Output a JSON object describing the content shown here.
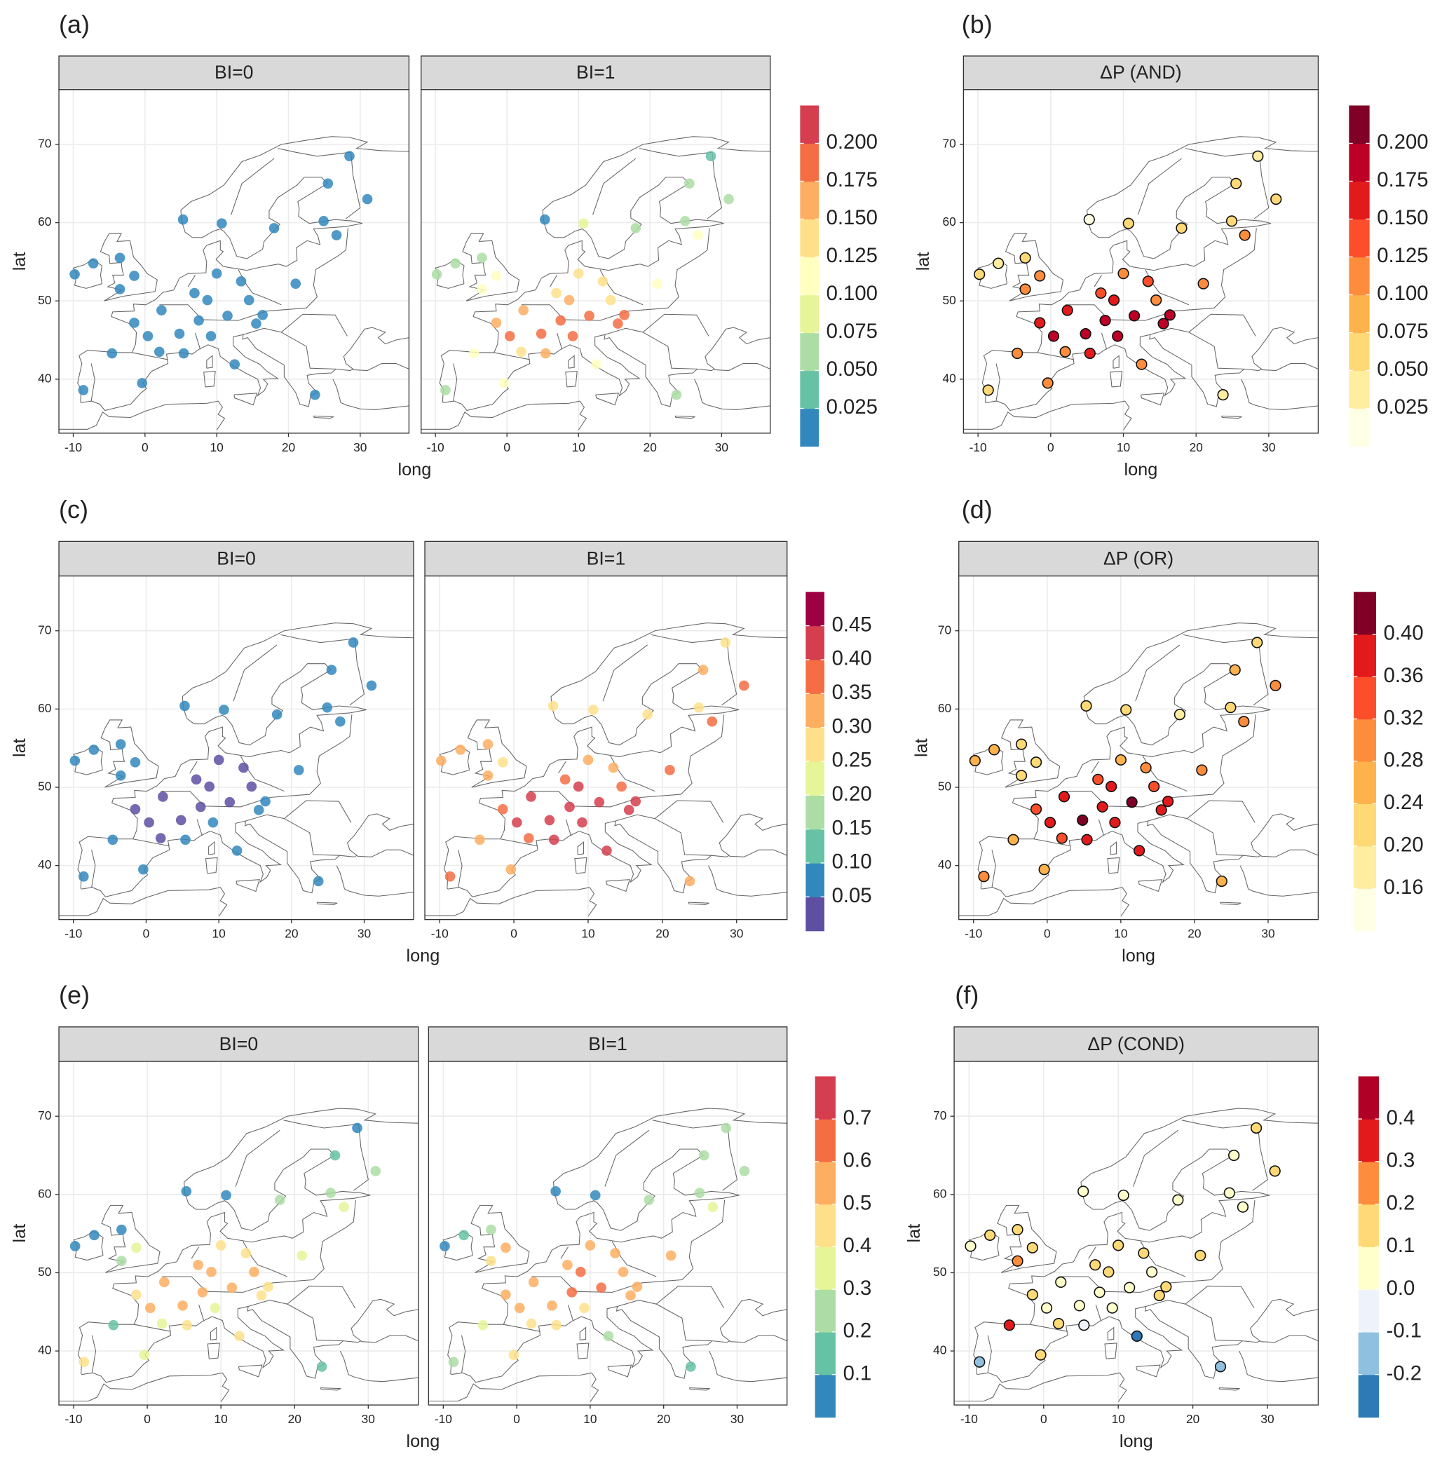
{
  "chart_data": [
    {
      "type": "scatter",
      "panel_label": "(a)",
      "xlabel": "long",
      "ylabel": "lat",
      "xlim": [
        -12,
        36.8
      ],
      "ylim": [
        33.1,
        77
      ],
      "xticks": [
        -10,
        0,
        10,
        20,
        30
      ],
      "yticks": [
        40,
        50,
        60,
        70
      ],
      "grid": true,
      "outlined": false,
      "x": [
        -9.8,
        -7.2,
        -3.5,
        -1.5,
        -3.5,
        -4.6,
        -0.4,
        -8.6,
        2.3,
        -1.5,
        0.4,
        4.8,
        2.0,
        5.4,
        7.5,
        8.7,
        6.9,
        10.0,
        11.5,
        13.4,
        14.5,
        16.4,
        15.5,
        9.2,
        12.5,
        10.7,
        18.0,
        24.9,
        26.7,
        21.0,
        23.7,
        25.5,
        28.5,
        31.0,
        5.3
      ],
      "y": [
        53.4,
        54.8,
        55.5,
        53.2,
        51.5,
        43.3,
        39.5,
        38.6,
        48.8,
        47.2,
        45.5,
        45.8,
        43.5,
        43.3,
        47.5,
        50.1,
        51.0,
        53.5,
        48.1,
        52.5,
        50.1,
        48.2,
        47.1,
        45.5,
        41.9,
        59.9,
        59.3,
        60.2,
        58.4,
        52.2,
        38.0,
        65.0,
        68.5,
        63.0,
        60.4
      ],
      "series": [
        {
          "name": "BI=0",
          "values": [
            0.01,
            0.01,
            0.01,
            0.02,
            0.01,
            0.01,
            0.02,
            0.01,
            0.02,
            0.01,
            0.01,
            0.01,
            0.02,
            0.01,
            0.01,
            0.01,
            0.01,
            0.01,
            0.01,
            0.01,
            0.01,
            0.01,
            0.01,
            0.01,
            0.01,
            0.01,
            0.01,
            0.01,
            0.01,
            0.01,
            0.01,
            0.01,
            0.01,
            0.01,
            0.01
          ]
        },
        {
          "name": "BI=1",
          "values": [
            0.06,
            0.05,
            0.07,
            0.12,
            0.11,
            0.11,
            0.12,
            0.06,
            0.17,
            0.16,
            0.18,
            0.19,
            0.13,
            0.16,
            0.19,
            0.16,
            0.14,
            0.13,
            0.18,
            0.14,
            0.13,
            0.18,
            0.19,
            0.18,
            0.11,
            0.08,
            0.06,
            0.06,
            0.12,
            0.11,
            0.05,
            0.06,
            0.04,
            0.06,
            0.01
          ]
        }
      ],
      "colorbar": {
        "lim": [
          0,
          0.225
        ],
        "colors": [
          "#3288bd",
          "#66c2a5",
          "#abdda4",
          "#e6f598",
          "#ffffbf",
          "#fee08b",
          "#fdae61",
          "#f46d43",
          "#d53e4f"
        ],
        "ticks": [
          0.025,
          {
            "value": 0.05,
            "label": "0.050"
          },
          0.075,
          {
            "value": 0.1,
            "label": "0.100"
          },
          0.125,
          {
            "value": 0.15,
            "label": "0.150"
          },
          0.175,
          {
            "value": 0.2,
            "label": "0.200"
          }
        ]
      }
    },
    {
      "type": "scatter",
      "panel_label": "(b)",
      "xlabel": "long",
      "ylabel": "lat",
      "xlim": [
        -12,
        36.8
      ],
      "ylim": [
        33.1,
        77
      ],
      "xticks": [
        -10,
        0,
        10,
        20,
        30
      ],
      "yticks": [
        40,
        50,
        60,
        70
      ],
      "grid": true,
      "outlined": true,
      "x": [
        -9.8,
        -7.2,
        -3.5,
        -1.5,
        -3.5,
        -4.6,
        -0.4,
        -8.6,
        2.3,
        -1.5,
        0.4,
        4.8,
        2.0,
        5.4,
        7.5,
        8.7,
        6.9,
        10.0,
        11.5,
        13.4,
        14.5,
        16.4,
        15.5,
        9.2,
        12.5,
        10.7,
        18.0,
        24.9,
        26.7,
        21.0,
        23.7,
        25.5,
        28.5,
        31.0,
        5.3
      ],
      "y": [
        53.4,
        54.8,
        55.5,
        53.2,
        51.5,
        43.3,
        39.5,
        38.6,
        48.8,
        47.2,
        45.5,
        45.8,
        43.5,
        43.3,
        47.5,
        50.1,
        51.0,
        53.5,
        48.1,
        52.5,
        50.1,
        48.2,
        47.1,
        45.5,
        41.9,
        59.9,
        59.3,
        60.2,
        58.4,
        52.2,
        38.0,
        65.0,
        68.5,
        63.0,
        60.4
      ],
      "series": [
        {
          "name": "ΔP (AND)",
          "values": [
            0.05,
            0.04,
            0.06,
            0.11,
            0.1,
            0.1,
            0.11,
            0.05,
            0.17,
            0.16,
            0.18,
            0.19,
            0.12,
            0.15,
            0.19,
            0.16,
            0.14,
            0.12,
            0.18,
            0.13,
            0.12,
            0.18,
            0.19,
            0.18,
            0.1,
            0.07,
            0.05,
            0.05,
            0.11,
            0.1,
            0.04,
            0.05,
            0.03,
            0.05,
            0.01
          ]
        }
      ],
      "colorbar": {
        "lim": [
          0,
          0.225
        ],
        "colors": [
          "#ffffe5",
          "#ffeda0",
          "#fed976",
          "#feb24c",
          "#fd8d3c",
          "#fc4e2a",
          "#e31a1c",
          "#bd0026",
          "#800026"
        ],
        "ticks": [
          0.025,
          {
            "value": 0.05,
            "label": "0.050"
          },
          0.075,
          {
            "value": 0.1,
            "label": "0.100"
          },
          0.125,
          {
            "value": 0.15,
            "label": "0.150"
          },
          0.175,
          {
            "value": 0.2,
            "label": "0.200"
          }
        ]
      }
    },
    {
      "type": "scatter",
      "panel_label": "(c)",
      "xlabel": "long",
      "ylabel": "lat",
      "xlim": [
        -12,
        36.8
      ],
      "ylim": [
        33.1,
        77
      ],
      "xticks": [
        -10,
        0,
        10,
        20,
        30
      ],
      "yticks": [
        40,
        50,
        60,
        70
      ],
      "grid": true,
      "outlined": false,
      "x": [
        -9.8,
        -7.2,
        -3.5,
        -1.5,
        -3.5,
        -4.6,
        -0.4,
        -8.6,
        2.3,
        -1.5,
        0.4,
        4.8,
        2.0,
        5.4,
        7.5,
        8.7,
        6.9,
        10.0,
        11.5,
        13.4,
        14.5,
        16.4,
        15.5,
        9.2,
        12.5,
        10.7,
        18.0,
        24.9,
        26.7,
        21.0,
        23.7,
        25.5,
        28.5,
        31.0,
        5.3
      ],
      "y": [
        53.4,
        54.8,
        55.5,
        53.2,
        51.5,
        43.3,
        39.5,
        38.6,
        48.8,
        47.2,
        45.5,
        45.8,
        43.5,
        43.3,
        47.5,
        50.1,
        51.0,
        53.5,
        48.1,
        52.5,
        50.1,
        48.2,
        47.1,
        45.5,
        41.9,
        59.9,
        59.3,
        60.2,
        58.4,
        52.2,
        38.0,
        65.0,
        68.5,
        63.0,
        60.4
      ],
      "series": [
        {
          "name": "BI=0",
          "values": [
            0.07,
            0.07,
            0.07,
            0.07,
            0.07,
            0.07,
            0.07,
            0.07,
            0.03,
            0.03,
            0.03,
            0.03,
            0.03,
            0.07,
            0.03,
            0.03,
            0.03,
            0.03,
            0.03,
            0.03,
            0.03,
            0.07,
            0.07,
            0.06,
            0.07,
            0.07,
            0.07,
            0.07,
            0.07,
            0.07,
            0.07,
            0.07,
            0.07,
            0.07,
            0.07
          ]
        },
        {
          "name": "BI=1",
          "values": [
            0.32,
            0.32,
            0.3,
            0.28,
            0.3,
            0.34,
            0.33,
            0.36,
            0.4,
            0.38,
            0.42,
            0.43,
            0.38,
            0.42,
            0.42,
            0.41,
            0.37,
            0.3,
            0.44,
            0.33,
            0.38,
            0.43,
            0.44,
            0.43,
            0.42,
            0.27,
            0.26,
            0.29,
            0.37,
            0.38,
            0.33,
            0.31,
            0.28,
            0.38,
            0.28
          ]
        }
      ],
      "colorbar": {
        "lim": [
          0,
          0.5
        ],
        "colors": [
          "#5e4fa2",
          "#3288bd",
          "#66c2a5",
          "#abdda4",
          "#e6f598",
          "#fee08b",
          "#fdae61",
          "#f46d43",
          "#d53e4f",
          "#9e0142"
        ],
        "ticks": [
          0.05,
          {
            "value": 0.1,
            "label": "0.10"
          },
          0.15,
          {
            "value": 0.2,
            "label": "0.20"
          },
          0.25,
          {
            "value": 0.3,
            "label": "0.30"
          },
          0.35,
          {
            "value": 0.4,
            "label": "0.40"
          },
          0.45
        ]
      }
    },
    {
      "type": "scatter",
      "panel_label": "(d)",
      "xlabel": "long",
      "ylabel": "lat",
      "xlim": [
        -12,
        36.8
      ],
      "ylim": [
        33.1,
        77
      ],
      "xticks": [
        -10,
        0,
        10,
        20,
        30
      ],
      "yticks": [
        40,
        50,
        60,
        70
      ],
      "grid": true,
      "outlined": true,
      "x": [
        -9.8,
        -7.2,
        -3.5,
        -1.5,
        -3.5,
        -4.6,
        -0.4,
        -8.6,
        2.3,
        -1.5,
        0.4,
        4.8,
        2.0,
        5.4,
        7.5,
        8.7,
        6.9,
        10.0,
        11.5,
        13.4,
        14.5,
        16.4,
        15.5,
        9.2,
        12.5,
        10.7,
        18.0,
        24.9,
        26.7,
        21.0,
        23.7,
        25.5,
        28.5,
        31.0,
        5.3
      ],
      "y": [
        53.4,
        54.8,
        55.5,
        53.2,
        51.5,
        43.3,
        39.5,
        38.6,
        48.8,
        47.2,
        45.5,
        45.8,
        43.5,
        43.3,
        47.5,
        50.1,
        51.0,
        53.5,
        48.1,
        52.5,
        50.1,
        48.2,
        47.1,
        45.5,
        41.9,
        59.9,
        59.3,
        60.2,
        58.4,
        52.2,
        38.0,
        65.0,
        68.5,
        63.0,
        60.4
      ],
      "series": [
        {
          "name": "ΔP (OR)",
          "values": [
            0.25,
            0.25,
            0.23,
            0.21,
            0.23,
            0.27,
            0.26,
            0.29,
            0.37,
            0.35,
            0.39,
            0.4,
            0.35,
            0.36,
            0.39,
            0.38,
            0.34,
            0.27,
            0.41,
            0.3,
            0.35,
            0.36,
            0.37,
            0.37,
            0.36,
            0.2,
            0.19,
            0.22,
            0.3,
            0.31,
            0.26,
            0.24,
            0.21,
            0.31,
            0.21
          ]
        }
      ],
      "colorbar": {
        "lim": [
          0.12,
          0.44
        ],
        "colors": [
          "#ffffe5",
          "#ffeda0",
          "#fed976",
          "#feb24c",
          "#fd8d3c",
          "#fc4e2a",
          "#e31a1c",
          "#800026"
        ],
        "ticks": [
          0.16,
          {
            "value": 0.2,
            "label": "0.20"
          },
          0.24,
          0.28,
          0.32,
          0.36,
          {
            "value": 0.4,
            "label": "0.40"
          }
        ]
      }
    },
    {
      "type": "scatter",
      "panel_label": "(e)",
      "xlabel": "long",
      "ylabel": "lat",
      "xlim": [
        -12,
        36.8
      ],
      "ylim": [
        33.1,
        77
      ],
      "xticks": [
        -10,
        0,
        10,
        20,
        30
      ],
      "yticks": [
        40,
        50,
        60,
        70
      ],
      "grid": true,
      "outlined": false,
      "x": [
        -9.8,
        -7.2,
        -3.5,
        -1.5,
        -3.5,
        -4.6,
        -0.4,
        -8.6,
        2.3,
        -1.5,
        0.4,
        4.8,
        2.0,
        5.4,
        7.5,
        8.7,
        6.9,
        10.0,
        11.5,
        13.4,
        14.5,
        16.4,
        15.5,
        9.2,
        12.5,
        10.7,
        18.0,
        24.9,
        26.7,
        21.0,
        23.7,
        25.5,
        28.5,
        31.0,
        5.3
      ],
      "y": [
        53.4,
        54.8,
        55.5,
        53.2,
        51.5,
        43.3,
        39.5,
        38.6,
        48.8,
        47.2,
        45.5,
        45.8,
        43.5,
        43.3,
        47.5,
        50.1,
        51.0,
        53.5,
        48.1,
        52.5,
        50.1,
        48.2,
        47.1,
        45.5,
        41.9,
        59.9,
        59.3,
        60.2,
        58.4,
        52.2,
        38.0,
        65.0,
        68.5,
        63.0,
        60.4
      ],
      "series": [
        {
          "name": "BI=0",
          "values": [
            0.05,
            0.06,
            0.05,
            0.35,
            0.3,
            0.12,
            0.35,
            0.42,
            0.55,
            0.45,
            0.52,
            0.55,
            0.35,
            0.45,
            0.55,
            0.55,
            0.5,
            0.45,
            0.6,
            0.42,
            0.55,
            0.4,
            0.45,
            0.38,
            0.45,
            0.05,
            0.25,
            0.2,
            0.35,
            0.38,
            0.15,
            0.18,
            0.05,
            0.22,
            0.05
          ]
        },
        {
          "name": "BI=1",
          "values": [
            0.05,
            0.15,
            0.25,
            0.5,
            0.45,
            0.35,
            0.45,
            0.3,
            0.6,
            0.55,
            0.58,
            0.55,
            0.45,
            0.45,
            0.62,
            0.62,
            0.58,
            0.55,
            0.62,
            0.55,
            0.6,
            0.55,
            0.55,
            0.45,
            0.3,
            0.05,
            0.3,
            0.25,
            0.35,
            0.55,
            0.15,
            0.25,
            0.25,
            0.3,
            0.05
          ]
        }
      ],
      "colorbar": {
        "lim": [
          0,
          0.8
        ],
        "colors": [
          "#3288bd",
          "#66c2a5",
          "#abdda4",
          "#e6f598",
          "#fee08b",
          "#fdae61",
          "#f46d43",
          "#d53e4f"
        ],
        "ticks": [
          0.1,
          0.2,
          0.3,
          0.4,
          0.5,
          0.6,
          0.7
        ]
      }
    },
    {
      "type": "scatter",
      "panel_label": "(f)",
      "xlabel": "long",
      "ylabel": "lat",
      "xlim": [
        -12,
        36.8
      ],
      "ylim": [
        33.1,
        77
      ],
      "xticks": [
        -10,
        0,
        10,
        20,
        30
      ],
      "yticks": [
        40,
        50,
        60,
        70
      ],
      "grid": true,
      "outlined": true,
      "x": [
        -9.8,
        -7.2,
        -3.5,
        -1.5,
        -3.5,
        -4.6,
        -0.4,
        -8.6,
        2.3,
        -1.5,
        0.4,
        4.8,
        2.0,
        5.4,
        7.5,
        8.7,
        6.9,
        10.0,
        11.5,
        13.4,
        14.5,
        16.4,
        15.5,
        9.2,
        12.5,
        10.7,
        18.0,
        24.9,
        26.7,
        21.0,
        23.7,
        25.5,
        28.5,
        31.0,
        5.3
      ],
      "y": [
        53.4,
        54.8,
        55.5,
        53.2,
        51.5,
        43.3,
        39.5,
        38.6,
        48.8,
        47.2,
        45.5,
        45.8,
        43.5,
        43.3,
        47.5,
        50.1,
        51.0,
        53.5,
        48.1,
        52.5,
        50.1,
        48.2,
        47.1,
        45.5,
        41.9,
        59.9,
        59.3,
        60.2,
        58.4,
        52.2,
        38.0,
        65.0,
        68.5,
        63.0,
        60.4
      ],
      "series": [
        {
          "name": "ΔP (COND)",
          "values": [
            0.08,
            0.12,
            0.16,
            0.18,
            0.22,
            0.35,
            0.12,
            -0.15,
            0.08,
            0.12,
            0.08,
            0.02,
            0.12,
            -0.02,
            0.08,
            0.1,
            0.1,
            0.12,
            0.04,
            0.15,
            0.05,
            0.17,
            0.12,
            0.08,
            -0.25,
            0.02,
            0.06,
            0.05,
            0.02,
            0.18,
            -0.15,
            0.08,
            0.18,
            0.12,
            0.02
          ]
        }
      ],
      "colorbar": {
        "lim": [
          -0.3,
          0.5
        ],
        "colors": [
          "#2c7bb6",
          "#8fc0e0",
          "#eef3fb",
          "#ffffcc",
          "#fed976",
          "#fd8d3c",
          "#e31a1c",
          "#b10026"
        ],
        "ticks": [
          -0.2,
          -0.1,
          {
            "value": 0,
            "label": "0.0"
          },
          0.1,
          0.2,
          0.3,
          0.4
        ]
      }
    }
  ]
}
